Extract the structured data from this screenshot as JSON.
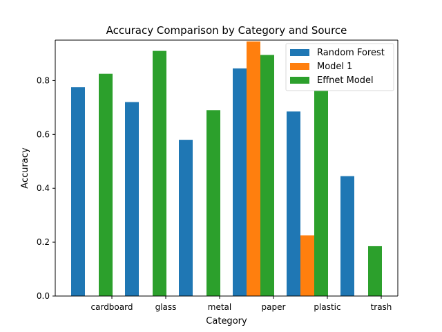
{
  "chart_data": {
    "type": "bar",
    "title": "Accuracy Comparison by Category and Source",
    "xlabel": "Category",
    "ylabel": "Accuracy",
    "categories": [
      "cardboard",
      "glass",
      "metal",
      "paper",
      "plastic",
      "trash"
    ],
    "x_ticks": [
      0,
      0.2,
      0.4,
      0.6,
      0.8
    ],
    "ylim": [
      0,
      0.95
    ],
    "legend_position": "top-right",
    "grid": false,
    "series": [
      {
        "name": "Random Forest",
        "color": "#1f77b4",
        "values": [
          0.775,
          0.72,
          0.58,
          0.845,
          0.685,
          0.445
        ]
      },
      {
        "name": "Model 1",
        "color": "#ff7f0e",
        "values": [
          null,
          null,
          null,
          0.945,
          0.225,
          null
        ]
      },
      {
        "name": "Effnet Model",
        "color": "#2ca02c",
        "values": [
          0.825,
          0.91,
          0.69,
          0.895,
          0.8,
          0.185
        ]
      }
    ]
  }
}
